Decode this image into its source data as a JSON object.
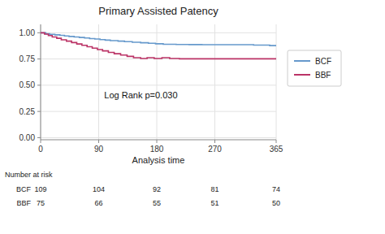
{
  "chart_data": {
    "type": "step",
    "title": "Primary Assisted Patency",
    "x_label": "Analysis time",
    "annotation": "Log Rank p=0.030",
    "xlim": [
      0,
      365
    ],
    "ylim": [
      -0.02,
      1.08
    ],
    "xticks": [
      0,
      90,
      180,
      270,
      365
    ],
    "yticks": [
      {
        "value": 0.0,
        "label": "0.00"
      },
      {
        "value": 0.25,
        "label": "0.25"
      },
      {
        "value": 0.5,
        "label": "0.50"
      },
      {
        "value": 0.75,
        "label": "0.75"
      },
      {
        "value": 1.0,
        "label": "1.00"
      }
    ],
    "grid": true,
    "legend": "right",
    "series": [
      {
        "name": "BCF",
        "color": "#6699CC",
        "x": [
          0,
          8,
          14,
          22,
          30,
          37,
          44,
          52,
          60,
          68,
          76,
          84,
          92,
          100,
          108,
          120,
          130,
          142,
          155,
          167,
          178,
          190,
          210,
          230,
          250,
          270,
          290,
          310,
          330,
          355,
          365
        ],
        "values": [
          1.0,
          0.99,
          0.985,
          0.98,
          0.975,
          0.97,
          0.965,
          0.96,
          0.955,
          0.95,
          0.945,
          0.94,
          0.935,
          0.93,
          0.925,
          0.92,
          0.915,
          0.91,
          0.905,
          0.9,
          0.895,
          0.89,
          0.888,
          0.887,
          0.886,
          0.886,
          0.886,
          0.886,
          0.882,
          0.878,
          0.876
        ]
      },
      {
        "name": "BBF",
        "color": "#BB3366",
        "x": [
          0,
          6,
          12,
          18,
          25,
          32,
          40,
          48,
          56,
          64,
          72,
          80,
          88,
          96,
          105,
          114,
          124,
          134,
          144,
          155,
          165,
          176,
          188,
          200,
          215,
          230,
          250,
          270,
          290,
          365
        ],
        "values": [
          1.0,
          0.987,
          0.973,
          0.96,
          0.947,
          0.933,
          0.92,
          0.907,
          0.893,
          0.88,
          0.867,
          0.853,
          0.84,
          0.827,
          0.813,
          0.8,
          0.787,
          0.775,
          0.762,
          0.755,
          0.762,
          0.755,
          0.762,
          0.755,
          0.752,
          0.752,
          0.752,
          0.752,
          0.752,
          0.752
        ]
      }
    ],
    "risk_table": {
      "title": "Number at risk",
      "times": [
        0,
        90,
        180,
        270,
        365
      ],
      "rows": [
        {
          "name": "BCF",
          "values": [
            109,
            104,
            92,
            81,
            74
          ]
        },
        {
          "name": "BBF",
          "values": [
            75,
            66,
            55,
            51,
            50
          ]
        }
      ]
    }
  }
}
